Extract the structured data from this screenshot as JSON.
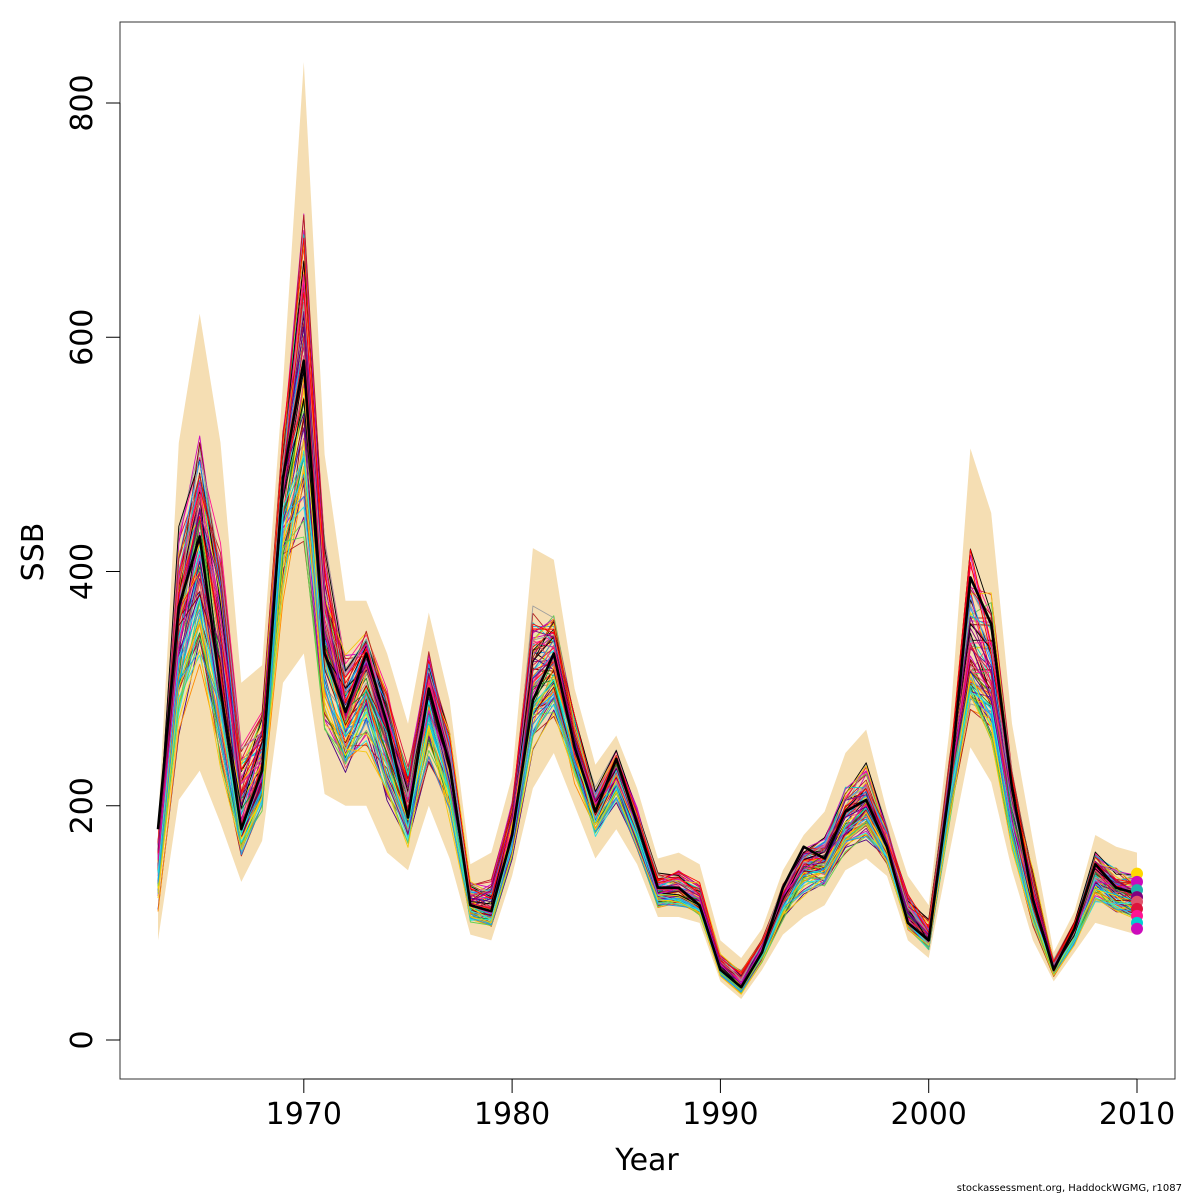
{
  "chart_data": {
    "type": "line",
    "xlabel": "Year",
    "ylabel": "SSB",
    "xlim": [
      1963,
      2010
    ],
    "ylim": [
      -33,
      868
    ],
    "x_ticks": [
      1970,
      1980,
      1990,
      2000,
      2010
    ],
    "y_ticks": [
      0,
      200,
      400,
      600,
      800
    ],
    "x_tick_labels": [
      "1970",
      "1980",
      "1990",
      "2000",
      "2010"
    ],
    "y_tick_labels": [
      "0",
      "200",
      "400",
      "600",
      "800"
    ],
    "grid": false,
    "legend": "none",
    "x": [
      1963,
      1964,
      1965,
      1966,
      1967,
      1968,
      1969,
      1970,
      1971,
      1972,
      1973,
      1974,
      1975,
      1976,
      1977,
      1978,
      1979,
      1980,
      1981,
      1982,
      1983,
      1984,
      1985,
      1986,
      1987,
      1988,
      1989,
      1990,
      1991,
      1992,
      1993,
      1994,
      1995,
      1996,
      1997,
      1998,
      1999,
      2000,
      2001,
      2002,
      2003,
      2004,
      2005,
      2006,
      2007,
      2008,
      2009,
      2010
    ],
    "band": {
      "color": "#F5DEB3",
      "upper": [
        185,
        510,
        620,
        510,
        305,
        320,
        560,
        835,
        500,
        375,
        375,
        330,
        270,
        365,
        290,
        150,
        160,
        225,
        420,
        410,
        300,
        235,
        260,
        215,
        155,
        160,
        150,
        85,
        70,
        95,
        145,
        175,
        195,
        245,
        265,
        195,
        140,
        115,
        265,
        505,
        450,
        270,
        170,
        75,
        110,
        175,
        165,
        160
      ],
      "lower": [
        85,
        205,
        230,
        185,
        135,
        170,
        305,
        330,
        210,
        200,
        200,
        160,
        145,
        200,
        155,
        90,
        85,
        140,
        215,
        245,
        200,
        155,
        180,
        150,
        105,
        105,
        100,
        50,
        35,
        60,
        90,
        105,
        115,
        145,
        155,
        140,
        85,
        70,
        160,
        250,
        220,
        145,
        85,
        50,
        75,
        100,
        95,
        90
      ]
    },
    "median": [
      150,
      340,
      420,
      310,
      185,
      230,
      470,
      560,
      330,
      270,
      315,
      260,
      195,
      290,
      230,
      115,
      110,
      175,
      300,
      320,
      250,
      195,
      230,
      180,
      125,
      125,
      115,
      60,
      45,
      75,
      120,
      150,
      150,
      180,
      195,
      165,
      105,
      85,
      210,
      320,
      300,
      185,
      115,
      60,
      90,
      140,
      125,
      120
    ],
    "highlight": {
      "color": "#000000",
      "values": [
        180,
        370,
        430,
        300,
        180,
        230,
        480,
        580,
        330,
        280,
        330,
        270,
        190,
        300,
        235,
        115,
        110,
        175,
        290,
        330,
        250,
        195,
        240,
        185,
        130,
        130,
        115,
        60,
        45,
        75,
        130,
        165,
        155,
        195,
        205,
        165,
        100,
        85,
        215,
        395,
        355,
        215,
        120,
        60,
        95,
        150,
        130,
        125
      ]
    },
    "palette": [
      "#000000",
      "#DF536B",
      "#61D04F",
      "#2297E6",
      "#28E2E5",
      "#CD0BBC",
      "#F5C710",
      "#9E9E9E",
      "#FF0000",
      "#800080",
      "#FF8C00",
      "#1E90FF",
      "#8B0000",
      "#228B22",
      "#FF1493",
      "#B22222",
      "#4B0082",
      "#DC143C",
      "#00CED1",
      "#FFD700"
    ],
    "n_replicates": 90,
    "end_points": {
      "year": 2010,
      "values": [
        142,
        135,
        128,
        122,
        118,
        112,
        106,
        100,
        95
      ],
      "colors": [
        "#FFD700",
        "#CD0BBC",
        "#20B2AA",
        "#800080",
        "#DF536B",
        "#DC143C",
        "#FF1493",
        "#00CED1",
        "#CD0BBC"
      ]
    }
  },
  "credit": "stockassessment.org, HaddockWGMG, r1087"
}
